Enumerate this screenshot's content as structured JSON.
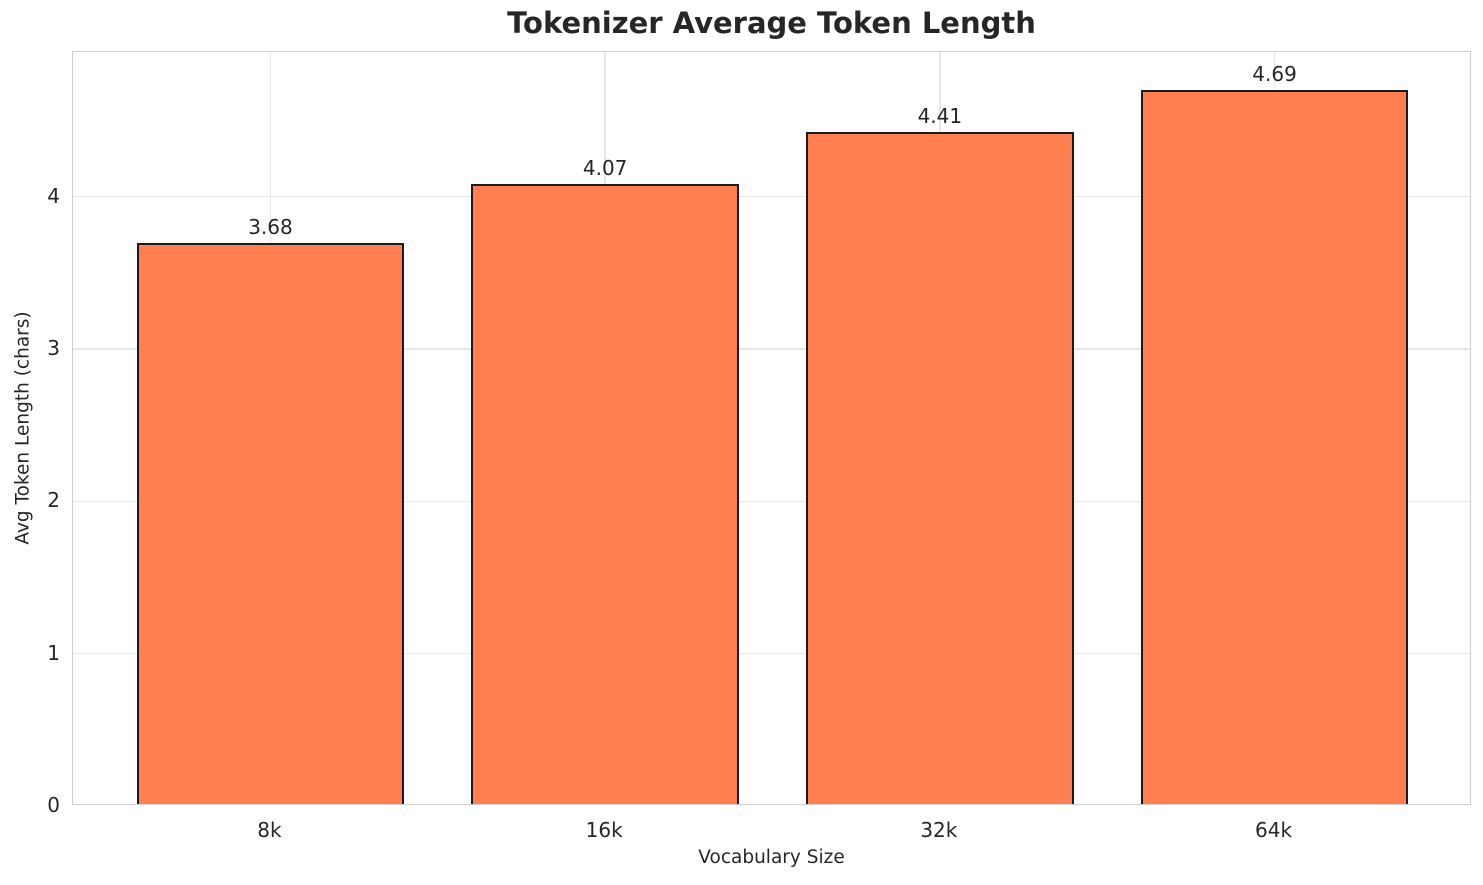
{
  "title": "Tokenizer Average Token Length",
  "chart_data": {
    "type": "bar",
    "title": "Tokenizer Average Token Length",
    "xlabel": "Vocabulary Size",
    "ylabel": "Avg Token Length (chars)",
    "categories": [
      "8k",
      "16k",
      "32k",
      "64k"
    ],
    "values": [
      3.68,
      4.07,
      4.41,
      4.69
    ],
    "value_labels": [
      "3.68",
      "4.07",
      "4.41",
      "4.69"
    ],
    "yticks": [
      0,
      1,
      2,
      3,
      4
    ],
    "ylim": [
      0,
      4.95
    ],
    "grid": true,
    "legend": "none",
    "bar_color": "#FF7F50",
    "bar_edge_color": "#1a1a1a",
    "grid_color": "#e7e7e7",
    "spine_color": "#cfcfcf",
    "text_color": "#262626",
    "background_color": "#ffffff"
  }
}
